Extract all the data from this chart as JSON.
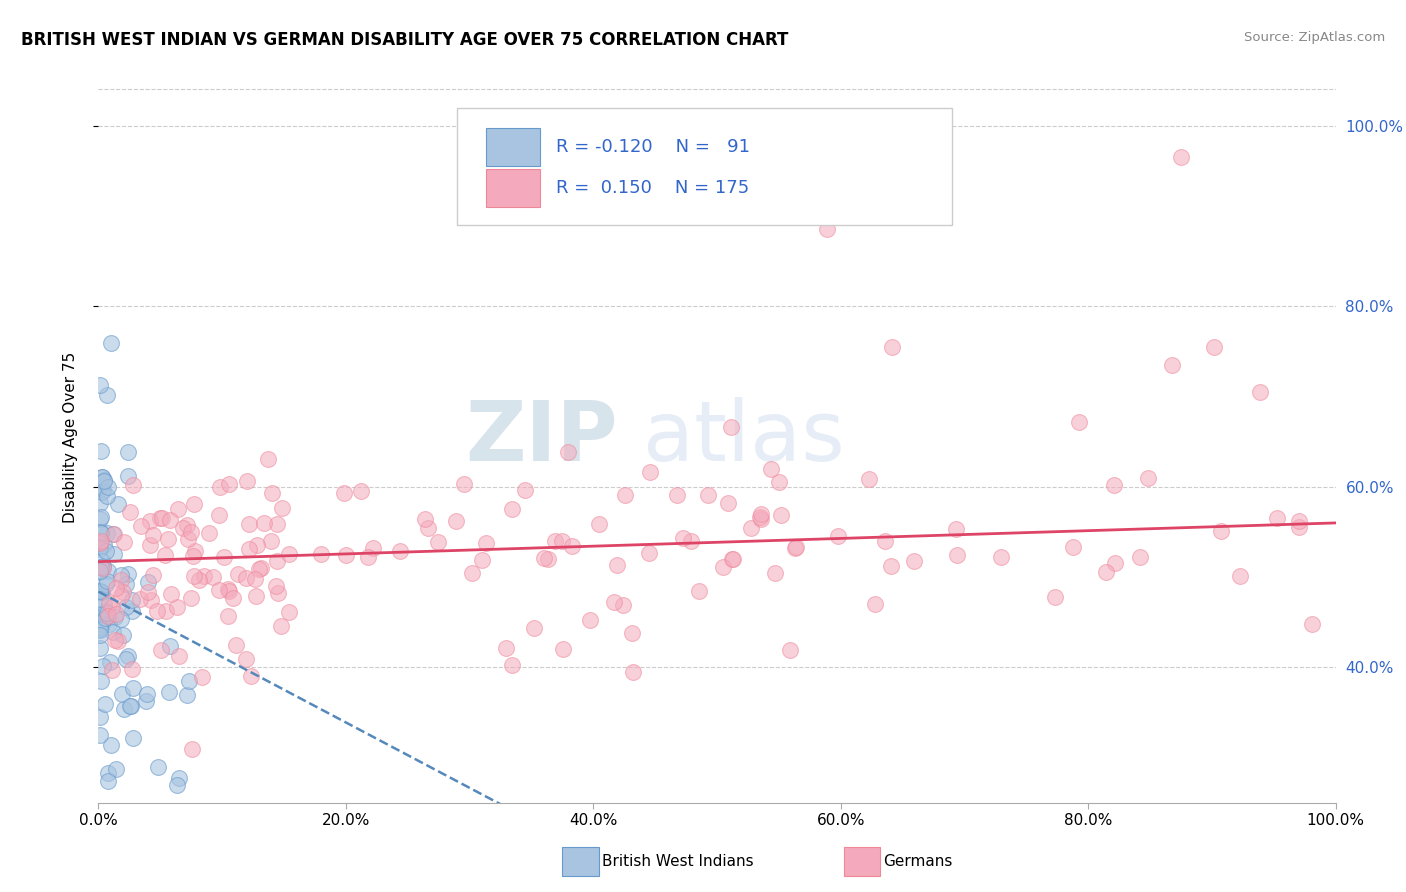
{
  "title": "BRITISH WEST INDIAN VS GERMAN DISABILITY AGE OVER 75 CORRELATION CHART",
  "source_text": "Source: ZipAtlas.com",
  "ylabel": "Disability Age Over 75",
  "r_blue": -0.12,
  "r_pink": 0.15,
  "n_blue": 91,
  "n_pink": 175,
  "blue_fill": "#A8C4E0",
  "blue_edge": "#6699CC",
  "pink_fill": "#F4AABC",
  "pink_edge": "#EE8899",
  "blue_line_color": "#5588BB",
  "pink_line_color": "#DD4466",
  "legend_text_color": "#3366CC",
  "right_tick_color": "#3366CC",
  "xlim": [
    0.0,
    1.0
  ],
  "ylim_data": [
    0.25,
    1.06
  ],
  "x_ticks": [
    0.0,
    0.2,
    0.4,
    0.6,
    0.8,
    1.0
  ],
  "x_tick_labels": [
    "0.0%",
    "20.0%",
    "40.0%",
    "60.0%",
    "80.0%",
    "100.0%"
  ],
  "y_ticks": [
    0.4,
    0.6,
    0.8,
    1.0
  ],
  "y_tick_labels": [
    "40.0%",
    "60.0%",
    "80.0%",
    "100.0%"
  ],
  "watermark_zip": "ZIP",
  "watermark_atlas": "atlas",
  "grid_color": "#CCCCCC",
  "seed": 42
}
